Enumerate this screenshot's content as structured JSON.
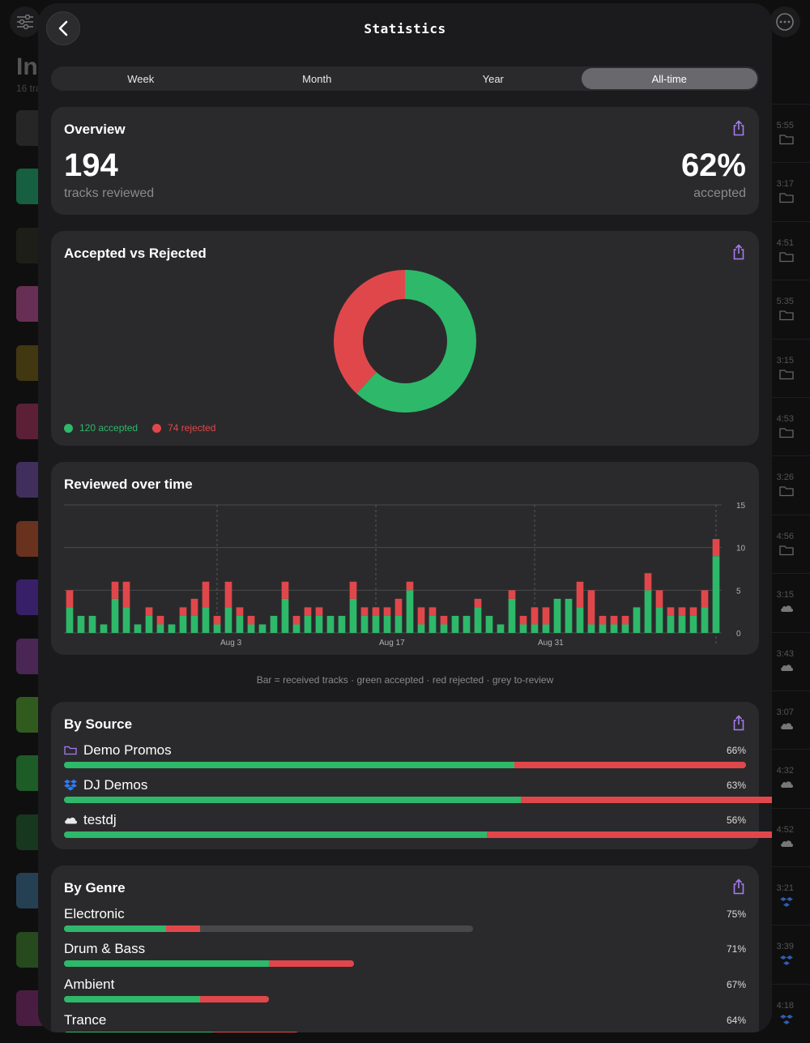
{
  "background": {
    "title": "In",
    "subtitle": "16 tra",
    "times": [
      "5:55",
      "3:17",
      "4:51",
      "5:35",
      "3:15",
      "4:53",
      "3:26",
      "4:56",
      "3:15",
      "3:43",
      "3:07",
      "4:32",
      "4:52",
      "3:21",
      "3:39",
      "4:18"
    ]
  },
  "header": {
    "title": "Statistics",
    "back_icon": "chevron-left-icon"
  },
  "tabs": [
    {
      "label": "Week",
      "active": false
    },
    {
      "label": "Month",
      "active": false
    },
    {
      "label": "Year",
      "active": false
    },
    {
      "label": "All-time",
      "active": true
    }
  ],
  "overview": {
    "title": "Overview",
    "tracks_reviewed": "194",
    "tracks_reviewed_label": "tracks reviewed",
    "accepted_pct": "62%",
    "accepted_label": "accepted"
  },
  "donut": {
    "title": "Accepted vs Rejected",
    "accepted_label": "120 accepted",
    "rejected_label": "74 rejected"
  },
  "timeline": {
    "title": "Reviewed over time",
    "footnote": "Bar = received tracks · green accepted · red rejected · grey to-review"
  },
  "by_source": {
    "title": "By Source",
    "items": [
      {
        "label": "Demo Promos",
        "icon": "folder-icon",
        "pct_label": "66%",
        "accepted": 66,
        "rejected": 34,
        "total": 100
      },
      {
        "label": "DJ Demos",
        "icon": "dropbox-icon",
        "pct_label": "63%",
        "accepted": 67,
        "rejected": 39,
        "total": 110
      },
      {
        "label": "testdj",
        "icon": "cloud-icon",
        "pct_label": "56%",
        "accepted": 62,
        "rejected": 48,
        "total": 115
      }
    ]
  },
  "by_genre": {
    "title": "By Genre",
    "items": [
      {
        "label": "Electronic",
        "pct_label": "75%",
        "accepted": 15,
        "rejected": 5,
        "total": 60
      },
      {
        "label": "Drum & Bass",
        "pct_label": "71%",
        "accepted": 30,
        "rejected": 12.5,
        "total": 42.5
      },
      {
        "label": "Ambient",
        "pct_label": "67%",
        "accepted": 20,
        "rejected": 10,
        "total": 30
      },
      {
        "label": "Trance",
        "pct_label": "64%",
        "accepted": 22,
        "rejected": 12.5,
        "total": 34.5
      }
    ]
  },
  "colors": {
    "accepted": "#2eb86a",
    "rejected": "#e0474b",
    "to_review": "#48484a",
    "accent": "#a57cf0"
  },
  "chart_data": [
    {
      "type": "pie",
      "title": "Accepted vs Rejected",
      "labels": [
        "accepted",
        "rejected"
      ],
      "values": [
        120,
        74
      ]
    },
    {
      "type": "bar",
      "stacked": true,
      "title": "Reviewed over time",
      "x_tick_labels": [
        "Aug 3",
        "Aug 17",
        "Aug 31"
      ],
      "y_ticks": [
        0,
        5,
        10,
        15
      ],
      "ylim": [
        0,
        15
      ],
      "series": [
        {
          "name": "accepted",
          "values": [
            3,
            2,
            2,
            1,
            4,
            3,
            1,
            2,
            1,
            1,
            2,
            2,
            3,
            1,
            3,
            2,
            1,
            1,
            2,
            4,
            1,
            2,
            2,
            2,
            2,
            4,
            2,
            2,
            2,
            2,
            5,
            1,
            2,
            1,
            2,
            2,
            3,
            2,
            1,
            4,
            1,
            1,
            1,
            4,
            4,
            3,
            1,
            1,
            1,
            1,
            3,
            5,
            3,
            2,
            2,
            2,
            3,
            9
          ]
        },
        {
          "name": "rejected",
          "values": [
            2,
            0,
            0,
            0,
            2,
            3,
            0,
            1,
            1,
            0,
            1,
            2,
            3,
            1,
            3,
            1,
            1,
            0,
            0,
            2,
            1,
            1,
            1,
            0,
            0,
            2,
            1,
            1,
            1,
            2,
            1,
            2,
            1,
            1,
            0,
            0,
            1,
            0,
            0,
            1,
            1,
            2,
            2,
            0,
            0,
            3,
            4,
            1,
            1,
            1,
            0,
            2,
            2,
            1,
            1,
            1,
            2,
            2
          ]
        }
      ]
    }
  ]
}
